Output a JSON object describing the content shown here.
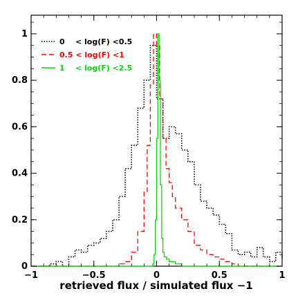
{
  "chart_data": {
    "type": "line",
    "title": "",
    "xlabel": "retrieved flux /  simulated flux −1",
    "ylabel": "",
    "xlim": [
      -1,
      1
    ],
    "ylim": [
      0,
      1.08
    ],
    "xticks": [
      -1,
      -0.5,
      0,
      0.5,
      1
    ],
    "xtick_labels": [
      "−1",
      "−0.5",
      "0",
      "0.5",
      "1"
    ],
    "yticks": [
      0,
      0.2,
      0.4,
      0.6,
      0.8,
      1
    ],
    "ytick_labels": [
      "0",
      "0.2",
      "0.4",
      "0.6",
      "0.8",
      "1"
    ],
    "grid": false,
    "legend_position": "top-left",
    "step": true,
    "series": [
      {
        "name": "0    < log(F) <0.5",
        "color": "#000000",
        "style": "dotted",
        "x": [
          -1.0,
          -0.9,
          -0.85,
          -0.8,
          -0.75,
          -0.7,
          -0.65,
          -0.6,
          -0.55,
          -0.5,
          -0.45,
          -0.4,
          -0.35,
          -0.3,
          -0.25,
          -0.2,
          -0.15,
          -0.1,
          -0.05,
          0.0,
          0.05,
          0.1,
          0.15,
          0.2,
          0.25,
          0.3,
          0.35,
          0.4,
          0.45,
          0.5,
          0.55,
          0.6,
          0.65,
          0.7,
          0.75,
          0.8,
          0.85,
          0.9,
          0.95,
          1.0
        ],
        "y": [
          0.0,
          0.0,
          0.01,
          0.02,
          0.0,
          0.04,
          0.07,
          0.06,
          0.09,
          0.1,
          0.12,
          0.15,
          0.2,
          0.3,
          0.42,
          0.52,
          0.68,
          0.8,
          0.95,
          0.72,
          0.55,
          0.6,
          0.57,
          0.5,
          0.45,
          0.35,
          0.28,
          0.25,
          0.22,
          0.18,
          0.14,
          0.07,
          0.05,
          0.06,
          0.04,
          0.08,
          0.04,
          0.02,
          0.06,
          0.03
        ]
      },
      {
        "name": "0.5 < log(F) <1",
        "color": "#ff0000",
        "style": "dashed",
        "x": [
          -1.0,
          -0.5,
          -0.4,
          -0.3,
          -0.25,
          -0.2,
          -0.15,
          -0.1,
          -0.075,
          -0.05,
          -0.025,
          0.0,
          0.025,
          0.05,
          0.075,
          0.1,
          0.125,
          0.15,
          0.2,
          0.25,
          0.3,
          0.35,
          0.4,
          0.45,
          0.5,
          0.55,
          0.6,
          0.65,
          0.7,
          1.0
        ],
        "y": [
          0.0,
          0.0,
          0.0,
          0.01,
          0.02,
          0.06,
          0.15,
          0.32,
          0.52,
          0.78,
          1.0,
          0.95,
          0.72,
          0.55,
          0.42,
          0.36,
          0.3,
          0.25,
          0.2,
          0.15,
          0.09,
          0.07,
          0.05,
          0.04,
          0.03,
          0.02,
          0.01,
          0.0,
          0.0,
          0.0
        ]
      },
      {
        "name": "1    < log(F) <2.5",
        "color": "#00dd00",
        "style": "solid",
        "x": [
          -1.0,
          -0.1,
          -0.05,
          -0.03,
          -0.02,
          -0.01,
          0.0,
          0.01,
          0.02,
          0.03,
          0.04,
          0.05,
          0.06,
          0.08,
          0.1,
          0.15,
          0.2,
          0.25,
          0.3,
          1.0
        ],
        "y": [
          0.0,
          0.0,
          0.0,
          0.01,
          0.05,
          0.2,
          0.55,
          1.0,
          0.8,
          0.35,
          0.12,
          0.06,
          0.04,
          0.03,
          0.02,
          0.01,
          0.0,
          0.0,
          0.0,
          0.0
        ]
      }
    ]
  }
}
